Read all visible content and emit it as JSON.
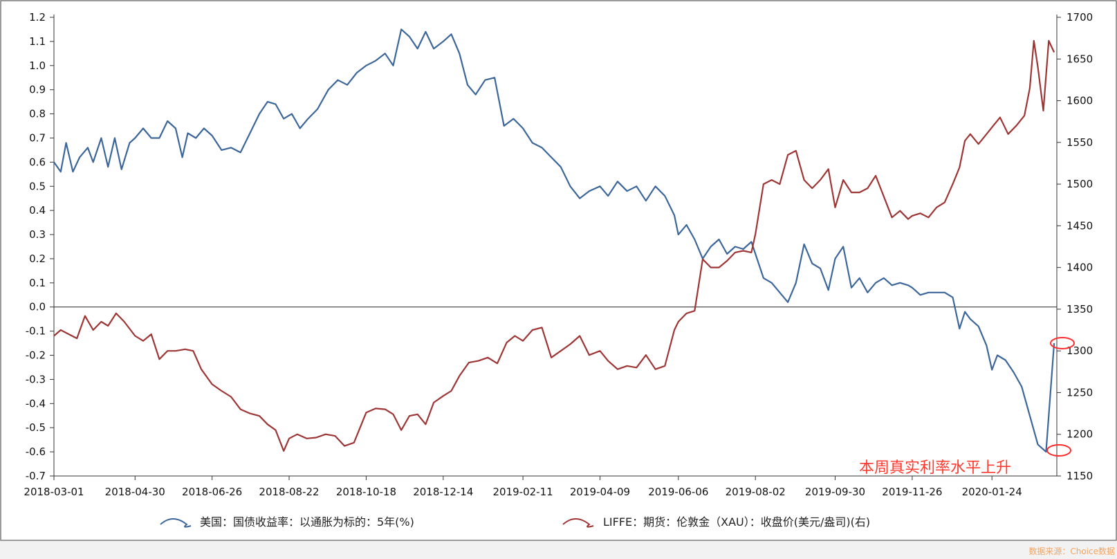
{
  "chart_data": {
    "type": "line",
    "left_axis": {
      "min": -0.7,
      "max": 1.2,
      "step": 0.1,
      "ticks": [
        "-0.7",
        "-0.6",
        "-0.5",
        "-0.4",
        "-0.3",
        "-0.2",
        "-0.1",
        "0.0",
        "0.1",
        "0.2",
        "0.3",
        "0.4",
        "0.5",
        "0.6",
        "0.7",
        "0.8",
        "0.9",
        "1.0",
        "1.1",
        "1.2"
      ]
    },
    "right_axis": {
      "min": 1150,
      "max": 1700,
      "step": 50,
      "ticks": [
        "1150",
        "1200",
        "1250",
        "1300",
        "1350",
        "1400",
        "1450",
        "1500",
        "1550",
        "1600",
        "1650",
        "1700"
      ]
    },
    "x_ticks": [
      "2018-03-01",
      "2018-04-30",
      "2018-06-26",
      "2018-08-22",
      "2018-10-18",
      "2018-12-14",
      "2019-02-11",
      "2019-04-09",
      "2019-06-06",
      "2019-08-02",
      "2019-09-30",
      "2019-11-26",
      "2020-01-24"
    ],
    "zero_line": 0.0,
    "series": [
      {
        "name": "美国：国债收益率：以通胀为标的：5年(%)",
        "axis": "left",
        "color": "#3c6699",
        "points": [
          [
            "2018-03-01",
            0.6
          ],
          [
            "2018-03-06",
            0.56
          ],
          [
            "2018-03-10",
            0.68
          ],
          [
            "2018-03-15",
            0.56
          ],
          [
            "2018-03-20",
            0.62
          ],
          [
            "2018-03-26",
            0.66
          ],
          [
            "2018-03-30",
            0.6
          ],
          [
            "2018-04-05",
            0.7
          ],
          [
            "2018-04-10",
            0.58
          ],
          [
            "2018-04-15",
            0.7
          ],
          [
            "2018-04-20",
            0.57
          ],
          [
            "2018-04-26",
            0.68
          ],
          [
            "2018-04-30",
            0.7
          ],
          [
            "2018-05-06",
            0.74
          ],
          [
            "2018-05-12",
            0.7
          ],
          [
            "2018-05-18",
            0.7
          ],
          [
            "2018-05-24",
            0.77
          ],
          [
            "2018-05-30",
            0.74
          ],
          [
            "2018-06-04",
            0.62
          ],
          [
            "2018-06-08",
            0.72
          ],
          [
            "2018-06-14",
            0.7
          ],
          [
            "2018-06-20",
            0.74
          ],
          [
            "2018-06-26",
            0.71
          ],
          [
            "2018-07-03",
            0.65
          ],
          [
            "2018-07-10",
            0.66
          ],
          [
            "2018-07-17",
            0.64
          ],
          [
            "2018-07-24",
            0.72
          ],
          [
            "2018-07-31",
            0.8
          ],
          [
            "2018-08-06",
            0.85
          ],
          [
            "2018-08-12",
            0.84
          ],
          [
            "2018-08-18",
            0.78
          ],
          [
            "2018-08-24",
            0.8
          ],
          [
            "2018-08-30",
            0.74
          ],
          [
            "2018-09-05",
            0.78
          ],
          [
            "2018-09-12",
            0.82
          ],
          [
            "2018-09-20",
            0.9
          ],
          [
            "2018-09-27",
            0.94
          ],
          [
            "2018-10-04",
            0.92
          ],
          [
            "2018-10-11",
            0.97
          ],
          [
            "2018-10-18",
            1.0
          ],
          [
            "2018-10-25",
            1.02
          ],
          [
            "2018-11-01",
            1.05
          ],
          [
            "2018-11-07",
            1.0
          ],
          [
            "2018-11-13",
            1.15
          ],
          [
            "2018-11-19",
            1.12
          ],
          [
            "2018-11-25",
            1.07
          ],
          [
            "2018-12-01",
            1.14
          ],
          [
            "2018-12-07",
            1.07
          ],
          [
            "2018-12-14",
            1.1
          ],
          [
            "2018-12-20",
            1.13
          ],
          [
            "2018-12-26",
            1.05
          ],
          [
            "2019-01-01",
            0.92
          ],
          [
            "2019-01-07",
            0.88
          ],
          [
            "2019-01-14",
            0.94
          ],
          [
            "2019-01-21",
            0.95
          ],
          [
            "2019-01-28",
            0.75
          ],
          [
            "2019-02-04",
            0.78
          ],
          [
            "2019-02-11",
            0.74
          ],
          [
            "2019-02-18",
            0.68
          ],
          [
            "2019-02-25",
            0.66
          ],
          [
            "2019-03-04",
            0.62
          ],
          [
            "2019-03-11",
            0.58
          ],
          [
            "2019-03-18",
            0.5
          ],
          [
            "2019-03-25",
            0.45
          ],
          [
            "2019-04-01",
            0.48
          ],
          [
            "2019-04-09",
            0.5
          ],
          [
            "2019-04-15",
            0.46
          ],
          [
            "2019-04-22",
            0.52
          ],
          [
            "2019-04-29",
            0.48
          ],
          [
            "2019-05-06",
            0.5
          ],
          [
            "2019-05-13",
            0.44
          ],
          [
            "2019-05-20",
            0.5
          ],
          [
            "2019-05-27",
            0.46
          ],
          [
            "2019-06-03",
            0.38
          ],
          [
            "2019-06-06",
            0.3
          ],
          [
            "2019-06-12",
            0.34
          ],
          [
            "2019-06-18",
            0.28
          ],
          [
            "2019-06-24",
            0.2
          ],
          [
            "2019-06-30",
            0.25
          ],
          [
            "2019-07-06",
            0.28
          ],
          [
            "2019-07-12",
            0.22
          ],
          [
            "2019-07-18",
            0.25
          ],
          [
            "2019-07-24",
            0.24
          ],
          [
            "2019-07-30",
            0.27
          ],
          [
            "2019-08-02",
            0.22
          ],
          [
            "2019-08-08",
            0.12
          ],
          [
            "2019-08-14",
            0.1
          ],
          [
            "2019-08-20",
            0.06
          ],
          [
            "2019-08-26",
            0.02
          ],
          [
            "2019-09-01",
            0.1
          ],
          [
            "2019-09-07",
            0.26
          ],
          [
            "2019-09-13",
            0.18
          ],
          [
            "2019-09-19",
            0.16
          ],
          [
            "2019-09-25",
            0.07
          ],
          [
            "2019-09-30",
            0.2
          ],
          [
            "2019-10-06",
            0.25
          ],
          [
            "2019-10-12",
            0.08
          ],
          [
            "2019-10-18",
            0.12
          ],
          [
            "2019-10-24",
            0.06
          ],
          [
            "2019-10-30",
            0.1
          ],
          [
            "2019-11-05",
            0.12
          ],
          [
            "2019-11-11",
            0.09
          ],
          [
            "2019-11-17",
            0.1
          ],
          [
            "2019-11-23",
            0.09
          ],
          [
            "2019-11-26",
            0.08
          ],
          [
            "2019-12-02",
            0.05
          ],
          [
            "2019-12-08",
            0.06
          ],
          [
            "2019-12-14",
            0.06
          ],
          [
            "2019-12-20",
            0.06
          ],
          [
            "2019-12-26",
            0.04
          ],
          [
            "2019-12-31",
            -0.09
          ],
          [
            "2020-01-04",
            -0.02
          ],
          [
            "2020-01-08",
            -0.05
          ],
          [
            "2020-01-14",
            -0.08
          ],
          [
            "2020-01-20",
            -0.16
          ],
          [
            "2020-01-24",
            -0.26
          ],
          [
            "2020-01-28",
            -0.2
          ],
          [
            "2020-02-03",
            -0.22
          ],
          [
            "2020-02-09",
            -0.27
          ],
          [
            "2020-02-15",
            -0.33
          ],
          [
            "2020-02-21",
            -0.45
          ],
          [
            "2020-02-27",
            -0.57
          ],
          [
            "2020-03-04",
            -0.6
          ],
          [
            "2020-03-10",
            -0.15
          ]
        ]
      },
      {
        "name": "LIFFE：期货：伦敦金（XAU）：收盘价(美元/盎司)(右)",
        "axis": "right",
        "color": "#9e3535",
        "points": [
          [
            "2018-03-01",
            1318
          ],
          [
            "2018-03-06",
            1325
          ],
          [
            "2018-03-12",
            1320
          ],
          [
            "2018-03-18",
            1315
          ],
          [
            "2018-03-24",
            1342
          ],
          [
            "2018-03-30",
            1325
          ],
          [
            "2018-04-05",
            1335
          ],
          [
            "2018-04-10",
            1330
          ],
          [
            "2018-04-16",
            1345
          ],
          [
            "2018-04-22",
            1335
          ],
          [
            "2018-04-30",
            1318
          ],
          [
            "2018-05-06",
            1312
          ],
          [
            "2018-05-12",
            1320
          ],
          [
            "2018-05-18",
            1290
          ],
          [
            "2018-05-24",
            1300
          ],
          [
            "2018-05-30",
            1300
          ],
          [
            "2018-06-06",
            1302
          ],
          [
            "2018-06-12",
            1300
          ],
          [
            "2018-06-18",
            1278
          ],
          [
            "2018-06-26",
            1260
          ],
          [
            "2018-07-03",
            1252
          ],
          [
            "2018-07-10",
            1245
          ],
          [
            "2018-07-17",
            1230
          ],
          [
            "2018-07-24",
            1225
          ],
          [
            "2018-07-31",
            1222
          ],
          [
            "2018-08-06",
            1212
          ],
          [
            "2018-08-12",
            1205
          ],
          [
            "2018-08-18",
            1180
          ],
          [
            "2018-08-22",
            1195
          ],
          [
            "2018-08-28",
            1200
          ],
          [
            "2018-09-04",
            1195
          ],
          [
            "2018-09-11",
            1196
          ],
          [
            "2018-09-18",
            1200
          ],
          [
            "2018-09-25",
            1198
          ],
          [
            "2018-10-02",
            1186
          ],
          [
            "2018-10-09",
            1190
          ],
          [
            "2018-10-18",
            1226
          ],
          [
            "2018-10-25",
            1231
          ],
          [
            "2018-11-01",
            1230
          ],
          [
            "2018-11-07",
            1224
          ],
          [
            "2018-11-13",
            1205
          ],
          [
            "2018-11-19",
            1222
          ],
          [
            "2018-11-25",
            1224
          ],
          [
            "2018-12-01",
            1212
          ],
          [
            "2018-12-07",
            1238
          ],
          [
            "2018-12-14",
            1246
          ],
          [
            "2018-12-20",
            1252
          ],
          [
            "2018-12-26",
            1270
          ],
          [
            "2019-01-02",
            1286
          ],
          [
            "2019-01-09",
            1288
          ],
          [
            "2019-01-16",
            1292
          ],
          [
            "2019-01-23",
            1285
          ],
          [
            "2019-01-30",
            1310
          ],
          [
            "2019-02-05",
            1318
          ],
          [
            "2019-02-11",
            1312
          ],
          [
            "2019-02-18",
            1325
          ],
          [
            "2019-02-25",
            1328
          ],
          [
            "2019-03-04",
            1292
          ],
          [
            "2019-03-11",
            1300
          ],
          [
            "2019-03-18",
            1308
          ],
          [
            "2019-03-25",
            1318
          ],
          [
            "2019-04-01",
            1295
          ],
          [
            "2019-04-09",
            1300
          ],
          [
            "2019-04-15",
            1288
          ],
          [
            "2019-04-22",
            1278
          ],
          [
            "2019-04-29",
            1282
          ],
          [
            "2019-05-06",
            1280
          ],
          [
            "2019-05-13",
            1295
          ],
          [
            "2019-05-20",
            1278
          ],
          [
            "2019-05-27",
            1282
          ],
          [
            "2019-06-03",
            1325
          ],
          [
            "2019-06-06",
            1335
          ],
          [
            "2019-06-12",
            1345
          ],
          [
            "2019-06-18",
            1348
          ],
          [
            "2019-06-24",
            1410
          ],
          [
            "2019-06-30",
            1400
          ],
          [
            "2019-07-06",
            1400
          ],
          [
            "2019-07-12",
            1408
          ],
          [
            "2019-07-18",
            1418
          ],
          [
            "2019-07-24",
            1420
          ],
          [
            "2019-07-30",
            1418
          ],
          [
            "2019-08-02",
            1440
          ],
          [
            "2019-08-08",
            1500
          ],
          [
            "2019-08-14",
            1505
          ],
          [
            "2019-08-20",
            1500
          ],
          [
            "2019-08-26",
            1535
          ],
          [
            "2019-09-01",
            1540
          ],
          [
            "2019-09-07",
            1505
          ],
          [
            "2019-09-13",
            1495
          ],
          [
            "2019-09-19",
            1505
          ],
          [
            "2019-09-25",
            1518
          ],
          [
            "2019-09-30",
            1472
          ],
          [
            "2019-10-06",
            1505
          ],
          [
            "2019-10-12",
            1490
          ],
          [
            "2019-10-18",
            1490
          ],
          [
            "2019-10-24",
            1495
          ],
          [
            "2019-10-30",
            1510
          ],
          [
            "2019-11-05",
            1485
          ],
          [
            "2019-11-11",
            1460
          ],
          [
            "2019-11-17",
            1468
          ],
          [
            "2019-11-23",
            1458
          ],
          [
            "2019-11-26",
            1462
          ],
          [
            "2019-12-02",
            1465
          ],
          [
            "2019-12-08",
            1460
          ],
          [
            "2019-12-14",
            1472
          ],
          [
            "2019-12-20",
            1478
          ],
          [
            "2019-12-26",
            1500
          ],
          [
            "2019-12-31",
            1520
          ],
          [
            "2020-01-04",
            1552
          ],
          [
            "2020-01-08",
            1560
          ],
          [
            "2020-01-14",
            1548
          ],
          [
            "2020-01-20",
            1560
          ],
          [
            "2020-01-24",
            1568
          ],
          [
            "2020-01-30",
            1580
          ],
          [
            "2020-02-05",
            1560
          ],
          [
            "2020-02-11",
            1570
          ],
          [
            "2020-02-17",
            1582
          ],
          [
            "2020-02-21",
            1615
          ],
          [
            "2020-02-24",
            1672
          ],
          [
            "2020-02-27",
            1640
          ],
          [
            "2020-03-02",
            1588
          ],
          [
            "2020-03-06",
            1672
          ],
          [
            "2020-03-10",
            1658
          ]
        ]
      }
    ],
    "annotation": "本周真实利率水平上升",
    "source": "数据来源：Choice数据"
  }
}
